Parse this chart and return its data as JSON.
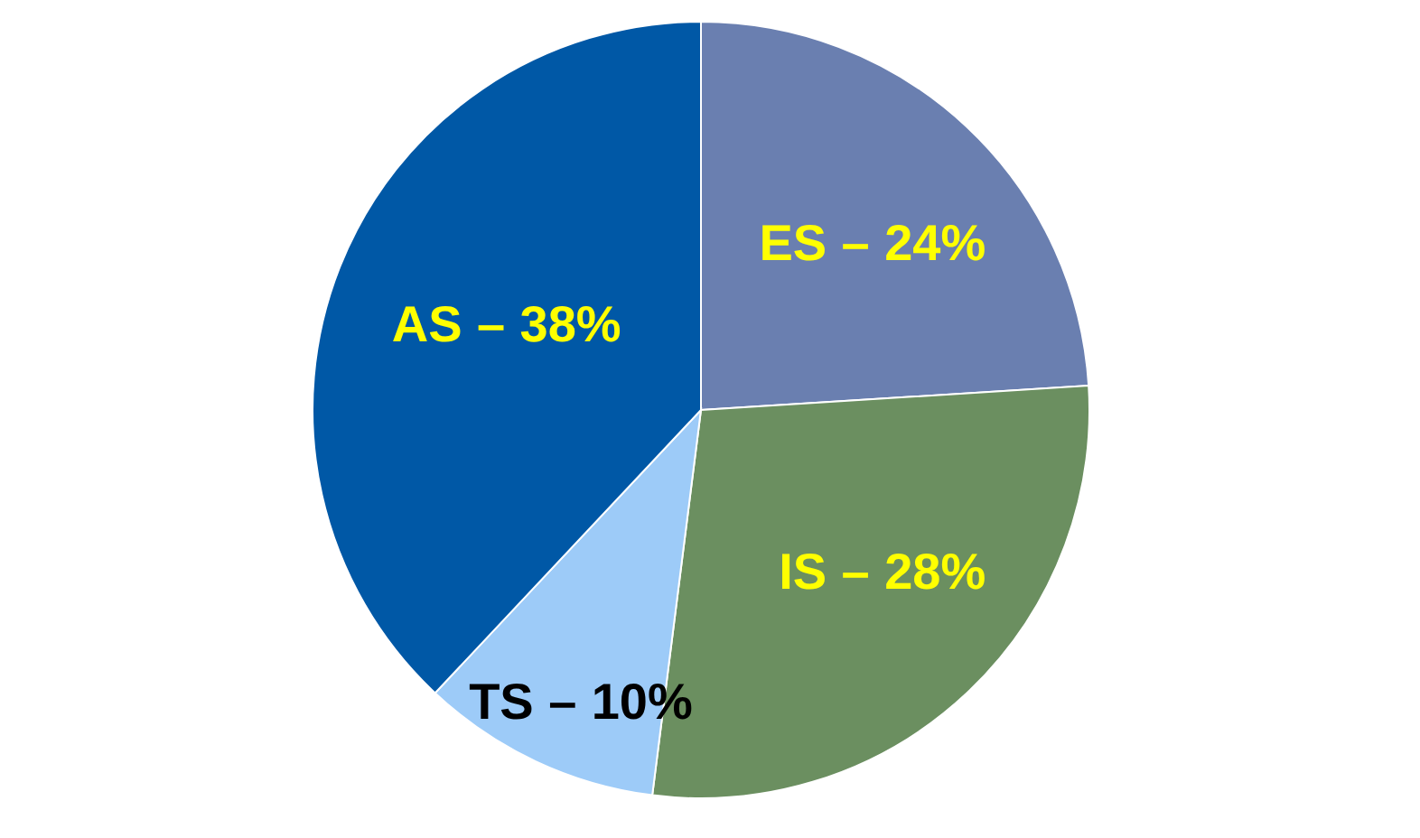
{
  "chart_data": {
    "type": "pie",
    "categories": [
      "ES",
      "IS",
      "TS",
      "AS"
    ],
    "values": [
      24,
      28,
      10,
      38
    ],
    "colors": [
      "#6a7fb0",
      "#6b8f60",
      "#9dcbf8",
      "#0058a6"
    ],
    "value_labels": [
      "24%",
      "28%",
      "10%",
      "38%"
    ],
    "annotations": [
      "–",
      "–",
      "–",
      "–"
    ],
    "legend": false
  }
}
